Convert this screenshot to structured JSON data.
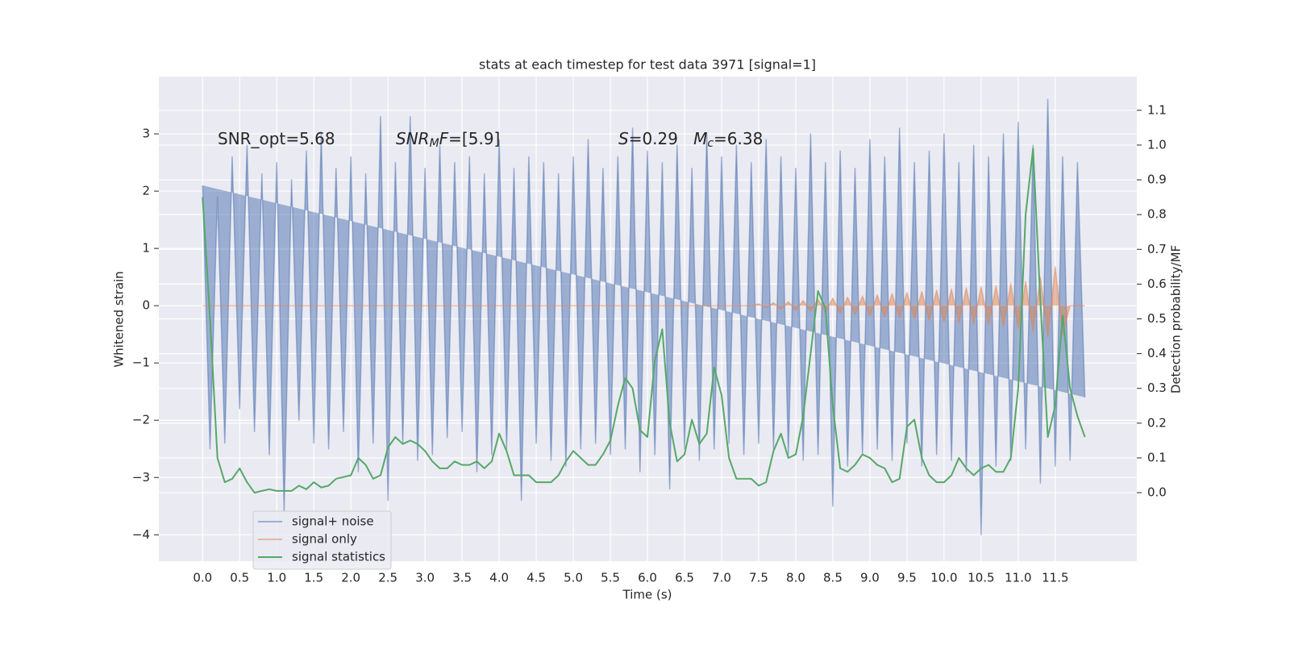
{
  "chart_data": {
    "type": "line",
    "title": "stats at each timestep for test data 3971 [signal=1]",
    "x_label": "Time (s)",
    "y_label": "Whitened strain",
    "y2_label": "Detection probability/MF",
    "annotations": [
      {
        "runs": [
          "SNR_opt=5.68"
        ]
      },
      {
        "runs": [
          "SNR",
          "M",
          "F",
          "=[5.9]"
        ]
      },
      {
        "runs": [
          "S",
          "=0.29   ",
          "M",
          "c",
          "=6.38"
        ]
      }
    ],
    "x": [
      0,
      0.1,
      0.2,
      0.3,
      0.4,
      0.5,
      0.6,
      0.7,
      0.8,
      0.9,
      1,
      1.1,
      1.2,
      1.3,
      1.4,
      1.5,
      1.6,
      1.7,
      1.8,
      1.9,
      2,
      2.1,
      2.2,
      2.3,
      2.4,
      2.5,
      2.6,
      2.7,
      2.8,
      2.9,
      3,
      3.1,
      3.2,
      3.3,
      3.4,
      3.5,
      3.6,
      3.7,
      3.8,
      3.9,
      4,
      4.1,
      4.2,
      4.3,
      4.4,
      4.5,
      4.6,
      4.7,
      4.8,
      4.9,
      5,
      5.1,
      5.2,
      5.3,
      5.4,
      5.5,
      5.6,
      5.7,
      5.8,
      5.9,
      6,
      6.1,
      6.2,
      6.3,
      6.4,
      6.5,
      6.6,
      6.7,
      6.8,
      6.9,
      7,
      7.1,
      7.2,
      7.3,
      7.4,
      7.5,
      7.6,
      7.7,
      7.8,
      7.9,
      8,
      8.1,
      8.2,
      8.3,
      8.4,
      8.5,
      8.6,
      8.7,
      8.8,
      8.9,
      9,
      9.1,
      9.2,
      9.3,
      9.4,
      9.5,
      9.6,
      9.7,
      9.8,
      9.9,
      10,
      10.1,
      10.2,
      10.3,
      10.4,
      10.5,
      10.6,
      10.7,
      10.8,
      10.9,
      11,
      11.1,
      11.2,
      11.3,
      11.4,
      11.5,
      11.6,
      11.7,
      11.8,
      11.9
    ],
    "series": [
      {
        "name": "signal+ noise",
        "color": "#4c72b0",
        "values": [
          2.1,
          -2.5,
          1.9,
          -2.4,
          2.6,
          -1.8,
          2.8,
          -2.2,
          2.3,
          -2.6,
          2.5,
          -3.6,
          2.2,
          -2.0,
          2.7,
          -2.4,
          3.0,
          -2.5,
          2.4,
          -2.2,
          2.6,
          -2.9,
          2.3,
          -2.4,
          3.3,
          -3.4,
          2.5,
          -2.4,
          3.3,
          -2.7,
          2.4,
          -2.6,
          2.8,
          -2.3,
          2.5,
          -2.2,
          2.6,
          -2.9,
          2.3,
          -2.6,
          2.9,
          -2.5,
          2.4,
          -3.4,
          2.6,
          -2.4,
          2.5,
          -2.7,
          2.3,
          -2.8,
          2.6,
          -2.5,
          2.9,
          -2.4,
          2.4,
          -2.6,
          2.6,
          -2.5,
          3.1,
          -2.9,
          2.7,
          -2.6,
          2.5,
          -3.2,
          2.8,
          -2.5,
          2.4,
          -2.7,
          3.0,
          -2.5,
          2.6,
          -2.4,
          2.8,
          -2.6,
          2.5,
          -2.4,
          2.9,
          -2.5,
          2.6,
          -2.6,
          2.4,
          -2.7,
          3.0,
          -2.6,
          2.5,
          -3.5,
          2.7,
          -2.8,
          2.4,
          -2.6,
          2.9,
          -2.5,
          2.6,
          -2.7,
          3.1,
          -2.4,
          2.5,
          -2.8,
          2.7,
          -2.6,
          3.0,
          -2.7,
          2.5,
          -2.9,
          2.8,
          -4.0,
          2.6,
          -2.8,
          3.0,
          -2.7,
          3.2,
          -2.5,
          2.8,
          -3.1,
          3.6,
          -2.8,
          2.6,
          -2.7,
          2.5,
          -1.6
        ]
      },
      {
        "name": "signal only",
        "color": "#dd8452",
        "values": [
          0,
          0,
          0,
          0,
          0,
          0,
          0,
          0,
          0,
          0,
          0,
          0,
          0,
          0,
          0,
          0,
          0,
          0,
          0,
          0,
          0,
          0,
          0,
          0,
          0,
          0,
          0,
          0,
          0,
          0,
          0,
          0,
          0,
          0,
          0,
          0,
          0,
          0,
          0,
          0,
          0,
          0,
          0,
          0,
          0,
          0,
          0,
          0,
          0,
          0,
          0,
          0,
          0,
          0,
          0,
          0,
          0,
          0,
          0,
          0,
          0,
          0,
          0,
          0,
          0,
          0,
          0,
          0,
          0,
          0,
          0,
          0,
          0,
          0,
          0,
          0.03,
          -0.04,
          0.05,
          -0.06,
          0.07,
          -0.08,
          0.09,
          -0.1,
          0.11,
          -0.12,
          0.13,
          -0.14,
          0.15,
          -0.16,
          0.17,
          -0.18,
          0.19,
          -0.2,
          0.21,
          -0.22,
          0.23,
          -0.24,
          0.25,
          -0.26,
          0.27,
          -0.28,
          0.29,
          -0.3,
          0.31,
          -0.32,
          0.33,
          -0.34,
          0.35,
          -0.37,
          0.39,
          -0.4,
          0.42,
          -0.45,
          0.5,
          -0.55,
          0.68,
          -0.5,
          0,
          0,
          0
        ]
      },
      {
        "name": "signal statistics",
        "color": "#55a868",
        "axis": "y2",
        "values": [
          0.85,
          0.5,
          0.1,
          0.03,
          0.04,
          0.07,
          0.03,
          0.0,
          0.005,
          0.01,
          0.005,
          0.005,
          0.005,
          0.02,
          0.01,
          0.03,
          0.015,
          0.02,
          0.04,
          0.045,
          0.05,
          0.1,
          0.08,
          0.04,
          0.05,
          0.13,
          0.16,
          0.14,
          0.15,
          0.14,
          0.12,
          0.09,
          0.07,
          0.07,
          0.09,
          0.08,
          0.08,
          0.09,
          0.07,
          0.09,
          0.17,
          0.12,
          0.05,
          0.05,
          0.05,
          0.03,
          0.03,
          0.03,
          0.05,
          0.09,
          0.12,
          0.1,
          0.08,
          0.08,
          0.11,
          0.15,
          0.25,
          0.33,
          0.3,
          0.18,
          0.16,
          0.38,
          0.47,
          0.2,
          0.09,
          0.11,
          0.21,
          0.14,
          0.17,
          0.36,
          0.28,
          0.1,
          0.04,
          0.04,
          0.04,
          0.02,
          0.03,
          0.12,
          0.17,
          0.1,
          0.11,
          0.22,
          0.4,
          0.58,
          0.53,
          0.25,
          0.07,
          0.06,
          0.08,
          0.11,
          0.1,
          0.08,
          0.07,
          0.03,
          0.04,
          0.19,
          0.21,
          0.1,
          0.05,
          0.03,
          0.03,
          0.05,
          0.1,
          0.07,
          0.05,
          0.07,
          0.08,
          0.06,
          0.06,
          0.1,
          0.3,
          0.8,
          0.99,
          0.55,
          0.16,
          0.25,
          0.51,
          0.3,
          0.22,
          0.16
        ]
      }
    ],
    "xlim": [
      -0.59,
      12.6
    ],
    "xticks": [
      {
        "value": 0,
        "label": "0.0"
      },
      0.5,
      {
        "value": 1,
        "label": "1.0"
      },
      1.5,
      {
        "value": 2,
        "label": "2.0"
      },
      2.5,
      {
        "value": 3,
        "label": "3.0"
      },
      3.5,
      {
        "value": 4,
        "label": "4.0"
      },
      4.5,
      {
        "value": 5,
        "label": "5.0"
      },
      5.5,
      {
        "value": 6,
        "label": "6.0"
      },
      6.5,
      {
        "value": 7,
        "label": "7.0"
      },
      7.5,
      {
        "value": 8,
        "label": "8.0"
      },
      8.5,
      {
        "value": 9,
        "label": "9.0"
      },
      9.5,
      {
        "value": 10,
        "label": "10.0"
      },
      10.5,
      {
        "value": 11,
        "label": "11.0"
      },
      11.5
    ],
    "ylim": [
      -4.46,
      4.0
    ],
    "yticks": [
      {
        "value": -4,
        "label": "−4"
      },
      {
        "value": -3,
        "label": "−3"
      },
      {
        "value": -2,
        "label": "−2"
      },
      {
        "value": -1,
        "label": "−1"
      },
      0,
      1,
      2,
      3
    ],
    "y2lim": [
      -0.197,
      1.197
    ],
    "y2ticks": [
      {
        "value": 0,
        "label": "0.0"
      },
      0.1,
      0.2,
      0.3,
      0.4,
      0.5,
      0.6,
      0.7,
      0.8,
      0.9,
      {
        "value": 1,
        "label": "1.0"
      },
      1.1
    ],
    "grid": true,
    "legend": "lower left"
  }
}
